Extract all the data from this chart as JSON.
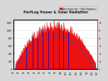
{
  "title": "PerfLog Power & Solar Radiation",
  "bg_color": "#d8d8d8",
  "plot_bg_color": "#ffffff",
  "red_fill_color": "#ee1111",
  "red_line_color": "#cc0000",
  "blue_dot_color": "#2255dd",
  "blue_line_color": "#0000bb",
  "grid_color": "#bbbbbb",
  "hline_color": "#cccccc",
  "legend_bg": "#dddddd",
  "n_vertical_grid": 16,
  "n_horizontal_grid": 6,
  "title_fontsize": 3.5,
  "tick_fontsize": 2.0
}
